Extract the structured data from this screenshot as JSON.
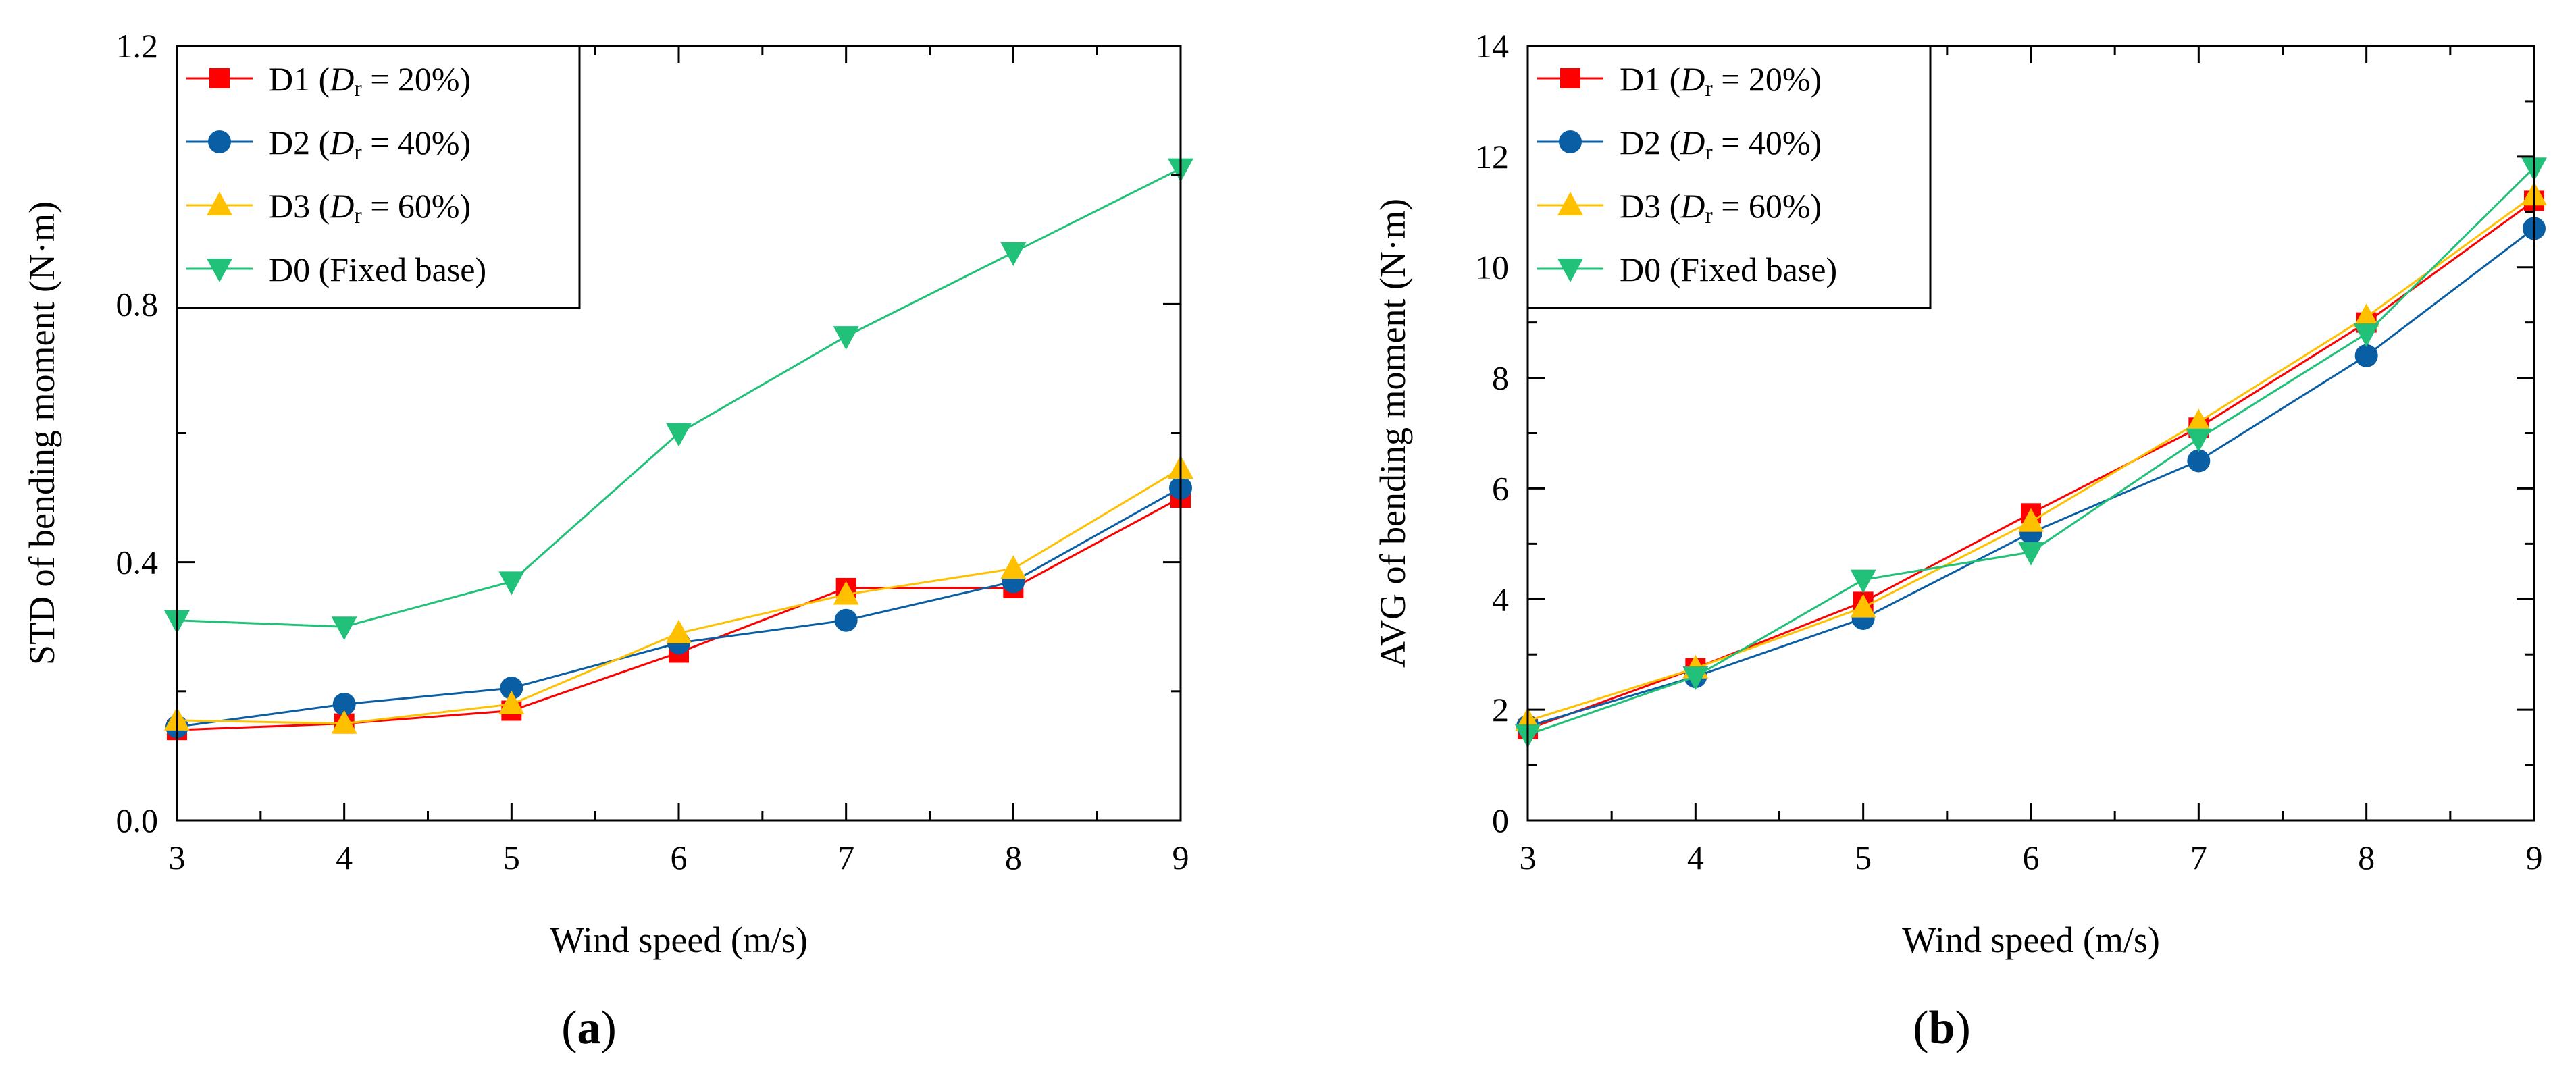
{
  "chart_data": [
    {
      "id": "a",
      "type": "line",
      "panel_label": "a",
      "title": "",
      "xlabel": "Wind speed (m/s)",
      "ylabel": "STD of bending moment (N·m)",
      "xlim": [
        3,
        9
      ],
      "ylim": [
        0,
        1.2
      ],
      "xticks": [
        3,
        4,
        5,
        6,
        7,
        8,
        9
      ],
      "yticks": [
        0,
        0.4,
        0.8,
        1.2
      ],
      "ytick_labels": [
        "0.0",
        "0.4",
        "0.8",
        "1.2"
      ],
      "legend_position": "top-left",
      "x": [
        3,
        4,
        5,
        6,
        7,
        8,
        9
      ],
      "series": [
        {
          "name": "D1",
          "label_pre": "D1 (",
          "label_var": "D",
          "label_sub": "r",
          "label_post": " = 20%)",
          "color": "#ff0000",
          "marker": "square",
          "values": [
            0.14,
            0.15,
            0.17,
            0.26,
            0.36,
            0.36,
            0.5
          ]
        },
        {
          "name": "D2",
          "label_pre": "D2 (",
          "label_var": "D",
          "label_sub": "r",
          "label_post": " = 40%)",
          "color": "#0a5ea4",
          "marker": "circle",
          "values": [
            0.145,
            0.18,
            0.205,
            0.275,
            0.31,
            0.37,
            0.515
          ]
        },
        {
          "name": "D3",
          "label_pre": "D3 (",
          "label_var": "D",
          "label_sub": "r",
          "label_post": " = 60%)",
          "color": "#ffc000",
          "marker": "triangle-up",
          "values": [
            0.155,
            0.15,
            0.18,
            0.29,
            0.35,
            0.39,
            0.545
          ]
        },
        {
          "name": "D0",
          "label_pre": "D0 (Fixed base)",
          "label_var": "",
          "label_sub": "",
          "label_post": "",
          "color": "#22c17a",
          "marker": "triangle-down",
          "values": [
            0.31,
            0.3,
            0.37,
            0.6,
            0.75,
            0.88,
            1.01
          ]
        }
      ]
    },
    {
      "id": "b",
      "type": "line",
      "panel_label": "b",
      "title": "",
      "xlabel": "Wind speed (m/s)",
      "ylabel": "AVG of bending moment (N·m)",
      "xlim": [
        3,
        9
      ],
      "ylim": [
        0,
        14
      ],
      "xticks": [
        3,
        4,
        5,
        6,
        7,
        8,
        9
      ],
      "yticks": [
        0,
        2,
        4,
        6,
        8,
        10,
        12,
        14
      ],
      "ytick_labels": [
        "0",
        "2",
        "4",
        "6",
        "8",
        "10",
        "12",
        "14"
      ],
      "legend_position": "top-left",
      "x": [
        3,
        4,
        5,
        6,
        7,
        8,
        9
      ],
      "series": [
        {
          "name": "D1",
          "label_pre": "D1 (",
          "label_var": "D",
          "label_sub": "r",
          "label_post": " = 20%)",
          "color": "#ff0000",
          "marker": "square",
          "values": [
            1.65,
            2.75,
            3.95,
            5.55,
            7.1,
            9.0,
            11.2
          ]
        },
        {
          "name": "D2",
          "label_pre": "D2 (",
          "label_var": "D",
          "label_sub": "r",
          "label_post": " = 40%)",
          "color": "#0a5ea4",
          "marker": "circle",
          "values": [
            1.7,
            2.6,
            3.65,
            5.2,
            6.5,
            8.4,
            10.7
          ]
        },
        {
          "name": "D3",
          "label_pre": "D3 (",
          "label_var": "D",
          "label_sub": "r",
          "label_post": " = 60%)",
          "color": "#ffc000",
          "marker": "triangle-up",
          "values": [
            1.8,
            2.75,
            3.85,
            5.4,
            7.2,
            9.1,
            11.3
          ]
        },
        {
          "name": "D0",
          "label_pre": "D0 (Fixed base)",
          "label_var": "",
          "label_sub": "",
          "label_post": "",
          "color": "#22c17a",
          "marker": "triangle-down",
          "values": [
            1.55,
            2.6,
            4.35,
            4.85,
            6.9,
            8.8,
            11.8
          ]
        }
      ]
    }
  ]
}
